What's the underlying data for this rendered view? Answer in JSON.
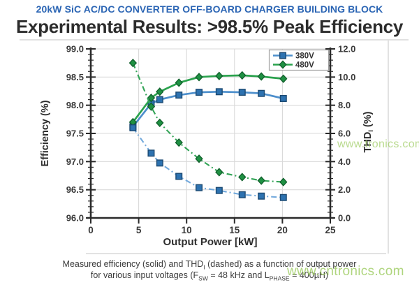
{
  "header": {
    "kicker": "20kW SiC AC/DC CONVERTER OFF-BOARD CHARGER BUILDING BLOCK",
    "title": "Experimental Results: >98.5% Peak Efficiency"
  },
  "watermark_bottom": "www.cntronics.com",
  "watermark_right": "www.tronics.com",
  "caption": {
    "parts": [
      {
        "text": "Measured efficiency (solid) and THD"
      },
      {
        "sub": "I"
      },
      {
        "text": " (dashed) as a function of output power"
      },
      {
        "break": true
      },
      {
        "text": "for various input voltages (F"
      },
      {
        "sub": "SW"
      },
      {
        "text": " = 48 kHz and L"
      },
      {
        "sub": "PHASE"
      },
      {
        "text": " = 400µH)"
      }
    ]
  },
  "chart_data": {
    "type": "line",
    "title": "",
    "xlabel": "Output Power [kW]",
    "xlim": [
      0,
      25
    ],
    "xticks": [
      0,
      5,
      10,
      15,
      20,
      25
    ],
    "grid": true,
    "legend_position": "top-right",
    "x": [
      4.4,
      6.3,
      7.2,
      9.2,
      11.3,
      13.4,
      15.8,
      17.8,
      20.1
    ],
    "left_axis": {
      "label": "Efficiency (%)",
      "lim": [
        96.0,
        99.0
      ],
      "ticks": [
        99.0,
        98.5,
        98.0,
        97.5,
        97.0,
        96.5,
        96.0
      ],
      "minor_step": 0.1
    },
    "right_axis": {
      "label_main": "THD",
      "label_sub": "I",
      "label_suffix": " (%)",
      "lim": [
        0.0,
        12.0
      ],
      "ticks": [
        12.0,
        10.0,
        8.0,
        6.0,
        4.0,
        2.0,
        0.0
      ],
      "minor_step": 0.4
    },
    "series": [
      {
        "name": "380V Efficiency",
        "legend": "380V",
        "axis": "left",
        "line": "solid",
        "marker": "square",
        "color": "#4d8fcc",
        "marker_fill": "#2d72b0",
        "marker_stroke": "#1c4a73",
        "values": [
          97.62,
          98.03,
          98.1,
          98.18,
          98.23,
          98.24,
          98.23,
          98.21,
          98.12
        ]
      },
      {
        "name": "480V Efficiency",
        "legend": "480V",
        "axis": "left",
        "line": "solid",
        "marker": "diamond",
        "color": "#2aa24d",
        "marker_fill": "#1f9143",
        "marker_stroke": "#11602c",
        "values": [
          97.7,
          98.13,
          98.24,
          98.4,
          98.5,
          98.52,
          98.53,
          98.51,
          98.47
        ]
      },
      {
        "name": "380V THD",
        "axis": "right",
        "line": "dashdot",
        "marker": "square",
        "color": "#74aadc",
        "marker_fill": "#2d72b0",
        "marker_stroke": "#1c4a73",
        "values": [
          6.4,
          4.6,
          3.9,
          2.95,
          2.15,
          1.95,
          1.65,
          1.55,
          1.45
        ]
      },
      {
        "name": "480V THD",
        "axis": "right",
        "line": "dashdot",
        "marker": "diamond",
        "color": "#33a457",
        "marker_fill": "#1f9143",
        "marker_stroke": "#11602c",
        "values": [
          11.0,
          7.9,
          6.75,
          5.35,
          4.2,
          3.25,
          2.9,
          2.65,
          2.55
        ]
      }
    ],
    "legend": [
      {
        "label": "380V",
        "series": 0
      },
      {
        "label": "480V",
        "series": 1
      }
    ],
    "colors": {
      "axis_line": "#2a2a2a",
      "grid_line": "#d9d9d9",
      "tick_text": "#3a3a3a",
      "panel_border": "#d9d9d9",
      "legend_border": "#a0a0a0"
    }
  }
}
